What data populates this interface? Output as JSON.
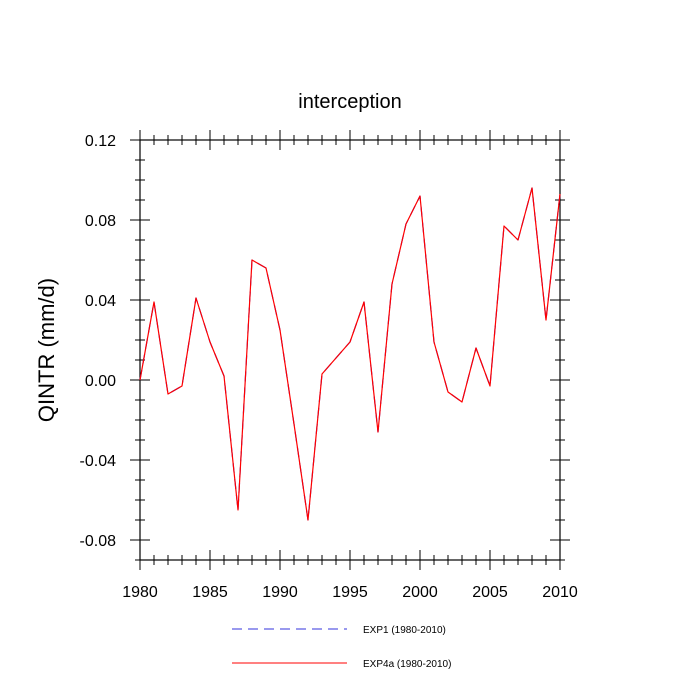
{
  "chart_data": {
    "type": "line",
    "title": "interception",
    "xlabel": "",
    "ylabel": "QINTR  (mm/d)",
    "xlim": [
      1980,
      2010
    ],
    "ylim": [
      -0.09,
      0.12
    ],
    "x_ticks": [
      1980,
      1985,
      1990,
      1995,
      2000,
      2005,
      2010
    ],
    "y_ticks": [
      0.12,
      0.08,
      0.04,
      0.0,
      -0.04,
      -0.08
    ],
    "x_tick_labels": [
      "1980",
      "1985",
      "1990",
      "1995",
      "2000",
      "2005",
      "2010"
    ],
    "y_tick_labels": [
      "0.12",
      "0.08",
      "0.04",
      "0.00",
      "-0.04",
      "-0.08"
    ],
    "x": [
      1980,
      1981,
      1982,
      1983,
      1984,
      1985,
      1986,
      1987,
      1988,
      1989,
      1990,
      1991,
      1992,
      1993,
      1994,
      1995,
      1996,
      1997,
      1998,
      1999,
      2000,
      2001,
      2002,
      2003,
      2004,
      2005,
      2006,
      2007,
      2008,
      2009,
      2010
    ],
    "series": [
      {
        "name": "EXP1 (1980-2010)",
        "color": "#3333dd",
        "style": "dashed",
        "values": [
          0.0,
          0.039,
          -0.007,
          -0.003,
          0.041,
          0.019,
          0.002,
          -0.065,
          0.06,
          0.056,
          0.025,
          -0.022,
          -0.07,
          0.003,
          0.011,
          0.019,
          0.039,
          -0.026,
          0.048,
          0.078,
          0.092,
          0.019,
          -0.006,
          -0.011,
          0.016,
          -0.003,
          0.077,
          0.07,
          0.096,
          0.03,
          0.093
        ]
      },
      {
        "name": "EXP4a (1980-2010)",
        "color": "#ff0000",
        "style": "solid",
        "values": [
          0.0,
          0.039,
          -0.007,
          -0.003,
          0.041,
          0.019,
          0.002,
          -0.065,
          0.06,
          0.056,
          0.025,
          -0.022,
          -0.07,
          0.003,
          0.011,
          0.019,
          0.039,
          -0.026,
          0.048,
          0.078,
          0.092,
          0.019,
          -0.006,
          -0.011,
          0.016,
          -0.003,
          0.077,
          0.07,
          0.096,
          0.03,
          0.093
        ]
      }
    ],
    "grid": false,
    "legend_position": "bottom"
  }
}
